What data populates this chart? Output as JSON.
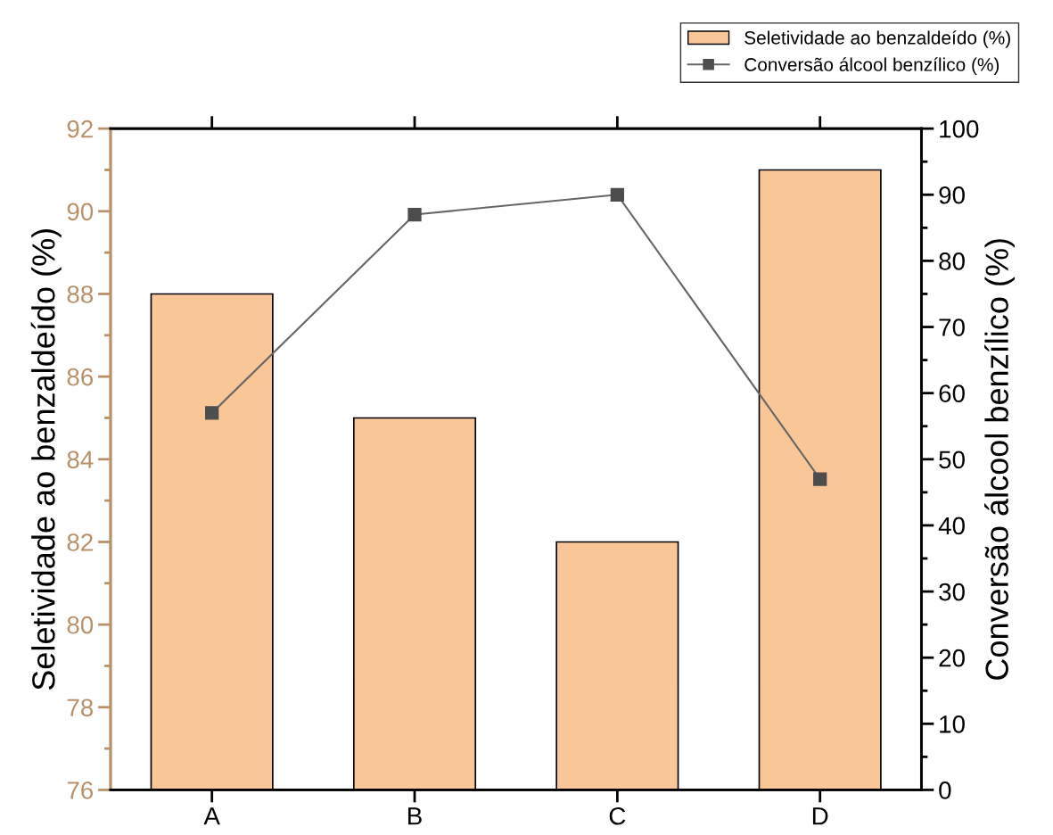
{
  "chart_data": {
    "type": "bar",
    "categories": [
      "A",
      "B",
      "C",
      "D"
    ],
    "ylabel": "Seletividade ao benzaldeído (%)",
    "y2label": "Conversão álcool benzílico (%)",
    "ylim": [
      76,
      92
    ],
    "yticks": [
      76,
      78,
      80,
      82,
      84,
      86,
      88,
      90,
      92
    ],
    "y2lim": [
      0,
      100
    ],
    "y2ticks": [
      0,
      10,
      20,
      30,
      40,
      50,
      60,
      70,
      80,
      90,
      100
    ],
    "legend": "top right",
    "grid": false,
    "series": [
      {
        "name": "Seletividade ao benzaldeído (%)",
        "color": "#f9c697",
        "values": [
          88,
          85,
          82,
          91
        ]
      },
      {
        "name": "Conversão álcool benzílico (%)",
        "type": "line",
        "axis": "y2",
        "color": "#4d4d4d",
        "marker": "square",
        "line_style": "solid",
        "values": [
          57,
          87,
          90,
          47
        ]
      }
    ]
  }
}
